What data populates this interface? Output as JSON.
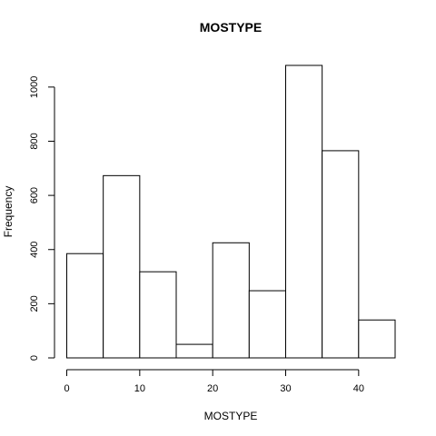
{
  "chart_data": {
    "type": "bar",
    "title": "MOSTYPE",
    "xlabel": "MOSTYPE",
    "ylabel": "Frequency",
    "bins": [
      {
        "from": 0,
        "to": 5,
        "value": 385
      },
      {
        "from": 5,
        "to": 10,
        "value": 673
      },
      {
        "from": 10,
        "to": 15,
        "value": 318
      },
      {
        "from": 15,
        "to": 20,
        "value": 50
      },
      {
        "from": 20,
        "to": 25,
        "value": 425
      },
      {
        "from": 25,
        "to": 30,
        "value": 248
      },
      {
        "from": 30,
        "to": 35,
        "value": 1080
      },
      {
        "from": 35,
        "to": 40,
        "value": 765
      },
      {
        "from": 40,
        "to": 45,
        "value": 140
      }
    ],
    "xlim": [
      0,
      45
    ],
    "ylim": [
      0,
      1080
    ],
    "x_ticks": [
      "0",
      "10",
      "20",
      "30",
      "40"
    ],
    "y_ticks": [
      "0",
      "200",
      "400",
      "600",
      "800",
      "1000"
    ],
    "grid": false,
    "legend": "none",
    "colors": {
      "bar_fill": "#ffffff",
      "bar_stroke": "#000000"
    }
  }
}
